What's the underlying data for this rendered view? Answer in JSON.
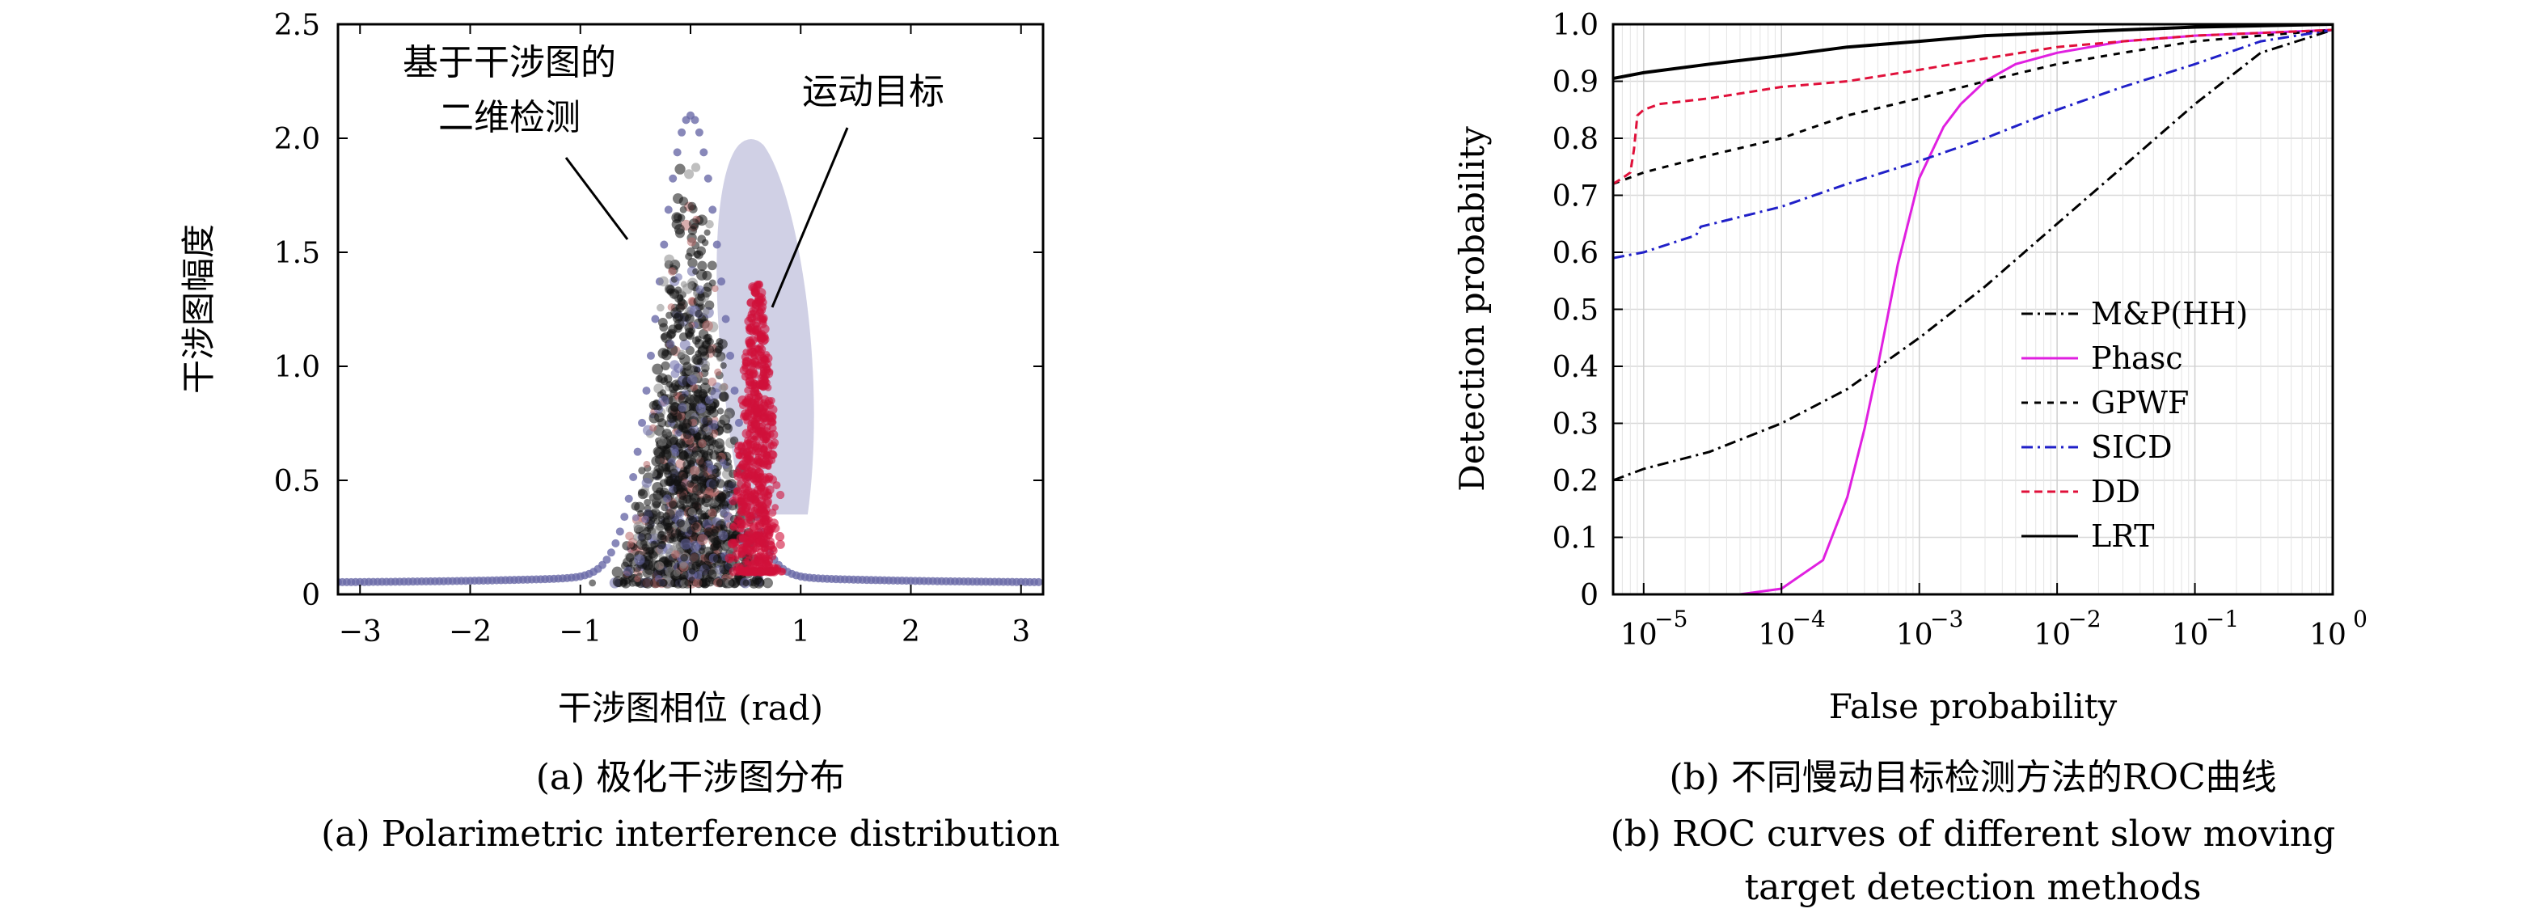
{
  "chart_data": [
    {
      "type": "scatter",
      "xlabel": "干涉图相位 (rad)",
      "ylabel": "干涉图幅度",
      "xlim": [
        -3.2,
        3.2
      ],
      "ylim": [
        0,
        2.5
      ],
      "xticks": [
        "−3",
        "−2",
        "−1",
        "0",
        "1",
        "2",
        "3"
      ],
      "yticks": [
        "0",
        "0.5",
        "1.0",
        "1.5",
        "2.0",
        "2.5"
      ],
      "annotations": [
        {
          "lines": [
            "基于干涉图的",
            "二维检测"
          ]
        },
        {
          "lines": [
            "运动目标"
          ]
        }
      ],
      "series": [
        {
          "color": "#6a6aa8",
          "values": {
            "center": 0.0,
            "peak": 2.0
          }
        },
        {
          "color": "#c0c0dc",
          "values": {
            "center": 0.55,
            "peak": 2.0
          }
        },
        {
          "color": "#d0103a",
          "values": {
            "center": 0.6,
            "peak": 1.4
          }
        }
      ],
      "caption_cn": "(a) 极化干涉图分布",
      "caption_en": "(a) Polarimetric interference distribution"
    },
    {
      "type": "line",
      "xlabel": "False probability",
      "ylabel": "Detection probability",
      "xscale": "log",
      "xlim": [
        6e-06,
        1
      ],
      "ylim": [
        0,
        1
      ],
      "grid": true,
      "legend_position": "bottom-right",
      "xticks": [
        {
          "base": "10",
          "exp": "−5"
        },
        {
          "base": "10",
          "exp": "−4"
        },
        {
          "base": "10",
          "exp": "−3"
        },
        {
          "base": "10",
          "exp": "−2"
        },
        {
          "base": "10",
          "exp": "−1"
        },
        {
          "base": "10",
          "exp": "0"
        }
      ],
      "yticks": [
        "0",
        "0.1",
        "0.2",
        "0.3",
        "0.4",
        "0.5",
        "0.6",
        "0.7",
        "0.8",
        "0.9",
        "1.0"
      ],
      "series": [
        {
          "name": "M&P(HH)",
          "color": "#000000",
          "dash": "14 6 3 6",
          "points": [
            [
              6e-06,
              0.2
            ],
            [
              1e-05,
              0.22
            ],
            [
              3e-05,
              0.25
            ],
            [
              0.0001,
              0.3
            ],
            [
              0.0003,
              0.36
            ],
            [
              0.001,
              0.45
            ],
            [
              0.003,
              0.54
            ],
            [
              0.01,
              0.65
            ],
            [
              0.03,
              0.75
            ],
            [
              0.1,
              0.86
            ],
            [
              0.3,
              0.95
            ],
            [
              1,
              0.99
            ]
          ]
        },
        {
          "name": "Phasc",
          "color": "#e020e0",
          "dash": "",
          "points": [
            [
              6e-06,
              0.0
            ],
            [
              5e-05,
              0.0
            ],
            [
              0.0001,
              0.01
            ],
            [
              0.0002,
              0.06
            ],
            [
              0.0003,
              0.17
            ],
            [
              0.0004,
              0.29
            ],
            [
              0.0005,
              0.4
            ],
            [
              0.0007,
              0.58
            ],
            [
              0.001,
              0.73
            ],
            [
              0.0015,
              0.82
            ],
            [
              0.002,
              0.86
            ],
            [
              0.003,
              0.9
            ],
            [
              0.005,
              0.93
            ],
            [
              0.01,
              0.95
            ],
            [
              0.03,
              0.97
            ],
            [
              0.1,
              0.98
            ],
            [
              1,
              0.99
            ]
          ]
        },
        {
          "name": "GPWF",
          "color": "#000000",
          "dash": "8 8",
          "points": [
            [
              6e-06,
              0.72
            ],
            [
              1e-05,
              0.74
            ],
            [
              3e-05,
              0.77
            ],
            [
              0.0001,
              0.8
            ],
            [
              0.0003,
              0.84
            ],
            [
              0.001,
              0.87
            ],
            [
              0.003,
              0.9
            ],
            [
              0.01,
              0.93
            ],
            [
              0.03,
              0.95
            ],
            [
              0.1,
              0.97
            ],
            [
              0.3,
              0.98
            ],
            [
              1,
              0.99
            ]
          ]
        },
        {
          "name": "SICD",
          "color": "#2020c8",
          "dash": "14 6 3 6",
          "points": [
            [
              6e-06,
              0.59
            ],
            [
              1e-05,
              0.6
            ],
            [
              2.4e-05,
              0.63
            ],
            [
              2.6e-05,
              0.645
            ],
            [
              0.0001,
              0.68
            ],
            [
              0.0003,
              0.72
            ],
            [
              0.001,
              0.76
            ],
            [
              0.003,
              0.8
            ],
            [
              0.01,
              0.85
            ],
            [
              0.03,
              0.89
            ],
            [
              0.1,
              0.93
            ],
            [
              0.3,
              0.97
            ],
            [
              1,
              0.99
            ]
          ]
        },
        {
          "name": "DD",
          "color": "#e0103a",
          "dash": "10 6",
          "points": [
            [
              6e-06,
              0.72
            ],
            [
              7e-06,
              0.73
            ],
            [
              8e-06,
              0.74
            ],
            [
              8.5e-06,
              0.78
            ],
            [
              9e-06,
              0.84
            ],
            [
              1e-05,
              0.85
            ],
            [
              1.3e-05,
              0.86
            ],
            [
              3e-05,
              0.87
            ],
            [
              0.0001,
              0.89
            ],
            [
              0.0003,
              0.9
            ],
            [
              0.001,
              0.92
            ],
            [
              0.003,
              0.94
            ],
            [
              0.01,
              0.96
            ],
            [
              0.03,
              0.97
            ],
            [
              0.1,
              0.98
            ],
            [
              1,
              0.99
            ]
          ]
        },
        {
          "name": "LRT",
          "color": "#000000",
          "dash": "",
          "points": [
            [
              6e-06,
              0.905
            ],
            [
              1e-05,
              0.915
            ],
            [
              3e-05,
              0.93
            ],
            [
              0.0001,
              0.945
            ],
            [
              0.0003,
              0.96
            ],
            [
              0.001,
              0.97
            ],
            [
              0.003,
              0.98
            ],
            [
              0.01,
              0.985
            ],
            [
              0.03,
              0.99
            ],
            [
              0.1,
              0.995
            ],
            [
              1,
              1.0
            ]
          ]
        }
      ],
      "caption_cn": "(b) 不同慢动目标检测方法的ROC曲线",
      "caption_en_lines": [
        "(b) ROC curves of different slow moving",
        "target detection methods"
      ]
    }
  ]
}
